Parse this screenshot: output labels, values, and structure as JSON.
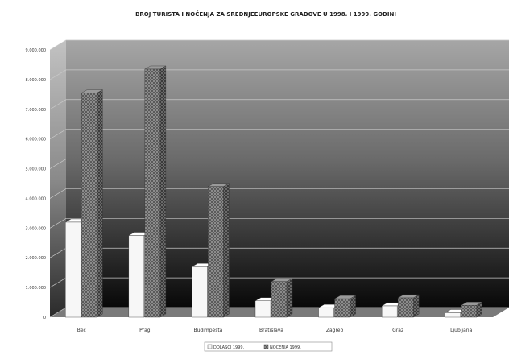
{
  "chart_data": {
    "type": "bar",
    "title": "BROJ TURISTA I NOĆENJA ZA SREDNJEEUROPSKE GRADOVE U 1998. I 1999. GODINI",
    "categories": [
      "Beč",
      "Prag",
      "Budimpešta",
      "Bratislava",
      "Zagreb",
      "Graz",
      "Ljubljana"
    ],
    "series": [
      {
        "name": "DOLASCI 1999.",
        "values": [
          3200000,
          2750000,
          1700000,
          550000,
          320000,
          380000,
          150000
        ]
      },
      {
        "name": "NOĆENJA 1999.",
        "values": [
          7550000,
          8350000,
          4400000,
          1200000,
          620000,
          650000,
          400000
        ]
      }
    ],
    "yticks": [
      "0",
      "1.000.000",
      "2.000.000",
      "3.000.000",
      "4.000.000",
      "5.000.000",
      "6.000.000",
      "7.000.000",
      "8.000.000",
      "9.000.000"
    ],
    "ylim": [
      0,
      9000000
    ],
    "grid": true,
    "legend_position": "bottom-center",
    "colors": {
      "dolasci": "#f7f7f7",
      "nocenja": "#8a8a8a",
      "wall_top": "#9e9e9e",
      "wall_bottom": "#0a0a0a",
      "floor": "#7a7a7a",
      "grid": "#c8c8c8"
    }
  }
}
